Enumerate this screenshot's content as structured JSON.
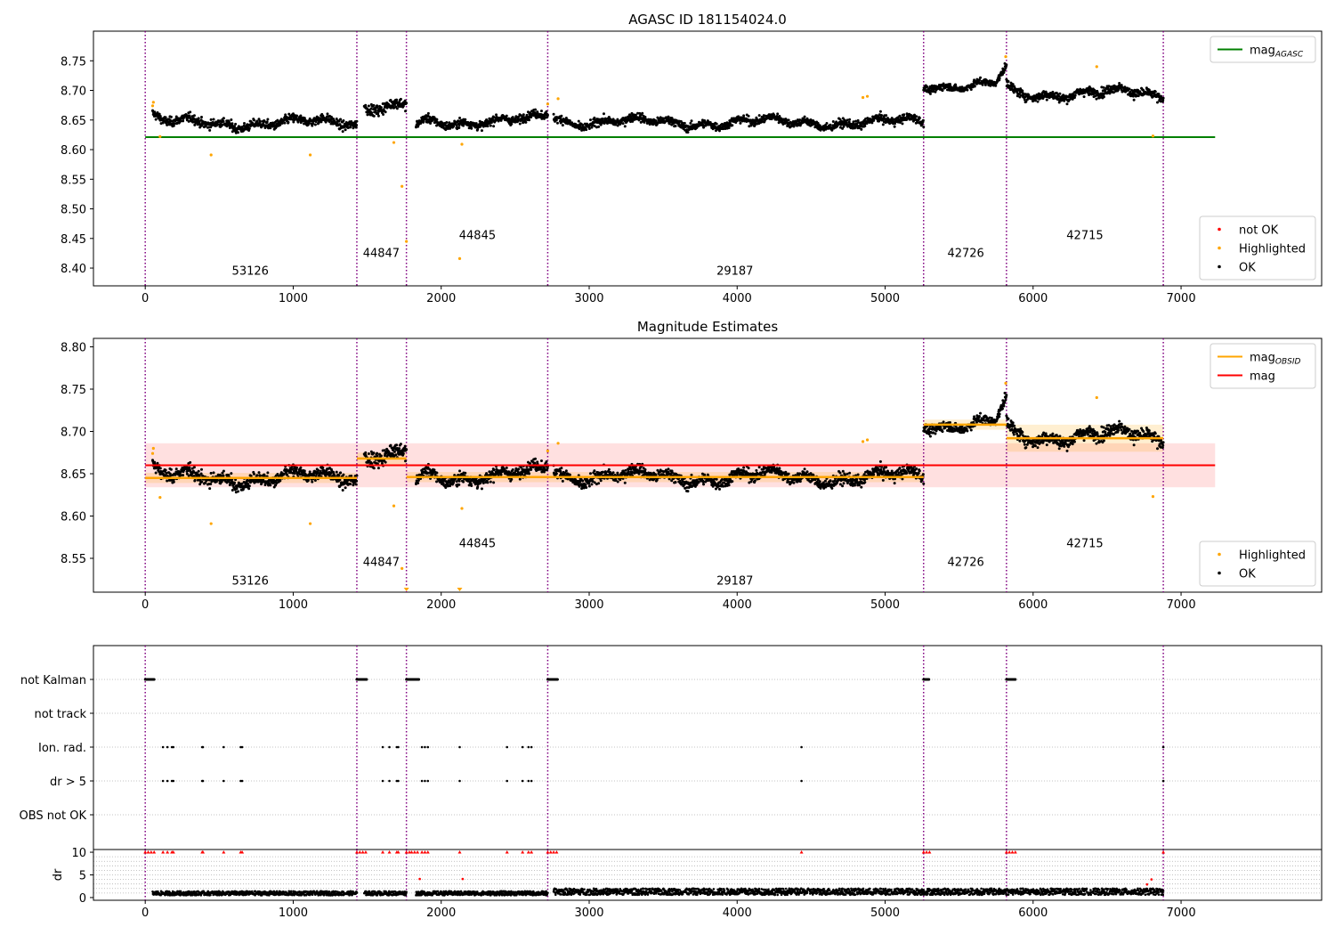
{
  "chart_data": [
    {
      "type": "scatter",
      "id": "top",
      "title": "AGASC ID 181154024.0",
      "xlim": [
        -350,
        7950
      ],
      "ylim": [
        8.37,
        8.8
      ],
      "xticks": [
        0,
        1000,
        2000,
        3000,
        4000,
        5000,
        6000,
        7000
      ],
      "yticks": [
        8.4,
        8.45,
        8.5,
        8.55,
        8.6,
        8.65,
        8.7,
        8.75
      ],
      "vlines": [
        0,
        1430,
        1765,
        2720,
        5260,
        5820,
        6880
      ],
      "mag_agasc": {
        "value": 8.621,
        "x_range": [
          0,
          7230
        ],
        "color": "#008000"
      },
      "obsid_labels": [
        {
          "text": "53126",
          "x": 710,
          "y": 8.389
        },
        {
          "text": "44847",
          "x": 1595,
          "y": 8.419
        },
        {
          "text": "44845",
          "x": 2245,
          "y": 8.449
        },
        {
          "text": "29187",
          "x": 3985,
          "y": 8.389
        },
        {
          "text": "42726",
          "x": 5545,
          "y": 8.419
        },
        {
          "text": "42715",
          "x": 6350,
          "y": 8.449
        }
      ],
      "segments": [
        {
          "obsid": "53126",
          "x_start": 50,
          "x_end": 1430,
          "level": 8.645,
          "start_level": 8.655,
          "spread": 0.012
        },
        {
          "obsid": "44847",
          "x_start": 1480,
          "x_end": 1765,
          "level": 8.672,
          "start_level": 8.678,
          "spread": 0.014
        },
        {
          "obsid": "44845",
          "x_start": 1830,
          "x_end": 2720,
          "level": 8.648,
          "start_level": 8.64,
          "end_level": 8.658,
          "spread": 0.011
        },
        {
          "obsid": "29187",
          "x_start": 2760,
          "x_end": 5260,
          "level": 8.646,
          "start_level": 8.66,
          "spread": 0.011
        },
        {
          "obsid": "42726",
          "x_start": 5260,
          "x_end": 5820,
          "level": 8.709,
          "start_level": 8.712,
          "end_level": 8.735,
          "spread": 0.009
        },
        {
          "obsid": "42715",
          "x_start": 5820,
          "x_end": 6880,
          "level": 8.695,
          "start_level": 8.71,
          "end_level": 8.688,
          "spread": 0.012
        }
      ],
      "highlighted": [
        [
          50,
          8.674
        ],
        [
          55,
          8.68
        ],
        [
          100,
          8.622
        ],
        [
          445,
          8.591
        ],
        [
          1115,
          8.591
        ],
        [
          1680,
          8.612
        ],
        [
          1735,
          8.538
        ],
        [
          1765,
          8.445
        ],
        [
          2125,
          8.416
        ],
        [
          2140,
          8.609
        ],
        [
          2720,
          8.677
        ],
        [
          2790,
          8.686
        ],
        [
          4850,
          8.688
        ],
        [
          4880,
          8.69
        ],
        [
          5815,
          8.757
        ],
        [
          6430,
          8.74
        ],
        [
          6810,
          8.623
        ]
      ],
      "legend_upper": [
        {
          "label": "mag",
          "sub": "AGASC",
          "color": "#008000",
          "kind": "line"
        }
      ],
      "legend_lower": [
        {
          "label": "not OK",
          "color": "#ff0000",
          "kind": "point"
        },
        {
          "label": "Highlighted",
          "color": "#ffa500",
          "kind": "point"
        },
        {
          "label": "OK",
          "color": "#000000",
          "kind": "point"
        }
      ]
    },
    {
      "type": "scatter",
      "id": "middle",
      "title": "Magnitude Estimates",
      "xlim": [
        -350,
        7950
      ],
      "ylim": [
        8.51,
        8.81
      ],
      "xticks": [
        0,
        1000,
        2000,
        3000,
        4000,
        5000,
        6000,
        7000
      ],
      "yticks": [
        8.55,
        8.6,
        8.65,
        8.7,
        8.75,
        8.8
      ],
      "vlines": [
        0,
        1430,
        1765,
        2720,
        5260,
        5820,
        6880
      ],
      "mag": {
        "value": 8.66,
        "band": [
          8.634,
          8.686
        ],
        "x_range": [
          0,
          7230
        ],
        "color": "#ff0000"
      },
      "obsid_mags": [
        {
          "x_range": [
            0,
            1430
          ],
          "value": 8.645,
          "err": 0.006
        },
        {
          "x_range": [
            1430,
            1765
          ],
          "value": 8.668,
          "err": 0.007
        },
        {
          "x_range": [
            1765,
            2720
          ],
          "value": 8.646,
          "err": 0.006
        },
        {
          "x_range": [
            2720,
            5260
          ],
          "value": 8.646,
          "err": 0.006
        },
        {
          "x_range": [
            5260,
            5820
          ],
          "value": 8.708,
          "err": 0.006
        },
        {
          "x_range": [
            5820,
            6880
          ],
          "value": 8.692,
          "err": 0.016
        }
      ],
      "obsid_labels": [
        {
          "text": "53126",
          "x": 710,
          "y": 8.519
        },
        {
          "text": "44847",
          "x": 1595,
          "y": 8.541
        },
        {
          "text": "44845",
          "x": 2245,
          "y": 8.563
        },
        {
          "text": "29187",
          "x": 3985,
          "y": 8.519
        },
        {
          "text": "42726",
          "x": 5545,
          "y": 8.541
        },
        {
          "text": "42715",
          "x": 6350,
          "y": 8.563
        }
      ],
      "legend_upper": [
        {
          "label": "mag",
          "sub": "OBSID",
          "color": "#ffa500",
          "kind": "line"
        },
        {
          "label": "mag",
          "sub": "",
          "color": "#ff0000",
          "kind": "line"
        }
      ],
      "legend_lower": [
        {
          "label": "Highlighted",
          "color": "#ffa500",
          "kind": "point"
        },
        {
          "label": "OK",
          "color": "#000000",
          "kind": "point"
        }
      ]
    },
    {
      "type": "scatter",
      "id": "flags",
      "xlim": [
        -350,
        7950
      ],
      "categories": [
        "not Kalman",
        "not track",
        "Ion. rad.",
        "dr > 5",
        "OBS not OK"
      ],
      "vlines": [
        0,
        1430,
        1765,
        2720,
        5260,
        5820,
        6880
      ],
      "flag_points": {
        "not Kalman": [
          [
            0,
            60
          ],
          [
            1430,
            1500
          ],
          [
            1765,
            1850
          ],
          [
            2720,
            2790
          ],
          [
            5260,
            5300
          ],
          [
            5820,
            5880
          ]
        ],
        "Ion. rad.": [
          120,
          150,
          180,
          190,
          385,
          390,
          530,
          645,
          655,
          1605,
          1650,
          1700,
          1710,
          1870,
          1890,
          1910,
          2125,
          2445,
          2550,
          2590,
          2610,
          4435,
          6880
        ],
        "dr > 5": [
          120,
          150,
          180,
          190,
          385,
          390,
          530,
          645,
          655,
          1605,
          1650,
          1700,
          1710,
          1870,
          1890,
          1910,
          2125,
          2445,
          2550,
          2590,
          2610,
          4435,
          6880
        ]
      }
    },
    {
      "type": "scatter",
      "id": "dr",
      "ylabel": "dr",
      "xlim": [
        -350,
        7950
      ],
      "ylim": [
        -0.6,
        10.6
      ],
      "xticks": [
        0,
        1000,
        2000,
        3000,
        4000,
        5000,
        6000,
        7000
      ],
      "yticks": [
        0,
        5,
        10
      ],
      "ygrid": [
        1,
        2,
        3,
        4,
        5,
        6,
        7,
        8,
        9
      ],
      "capped_red": [
        0,
        20,
        40,
        60,
        120,
        150,
        180,
        190,
        385,
        390,
        530,
        645,
        655,
        1430,
        1450,
        1470,
        1490,
        1605,
        1650,
        1700,
        1710,
        1765,
        1785,
        1800,
        1820,
        1840,
        1870,
        1890,
        1910,
        2125,
        2445,
        2550,
        2590,
        2610,
        2720,
        2740,
        2760,
        2780,
        4435,
        5260,
        5280,
        5300,
        5820,
        5840,
        5860,
        5880,
        6880
      ],
      "scattered_red": [
        [
          1855,
          4.1
        ],
        [
          2145,
          4.1
        ],
        [
          6770,
          2.9
        ],
        [
          6800,
          4.0
        ]
      ]
    }
  ]
}
